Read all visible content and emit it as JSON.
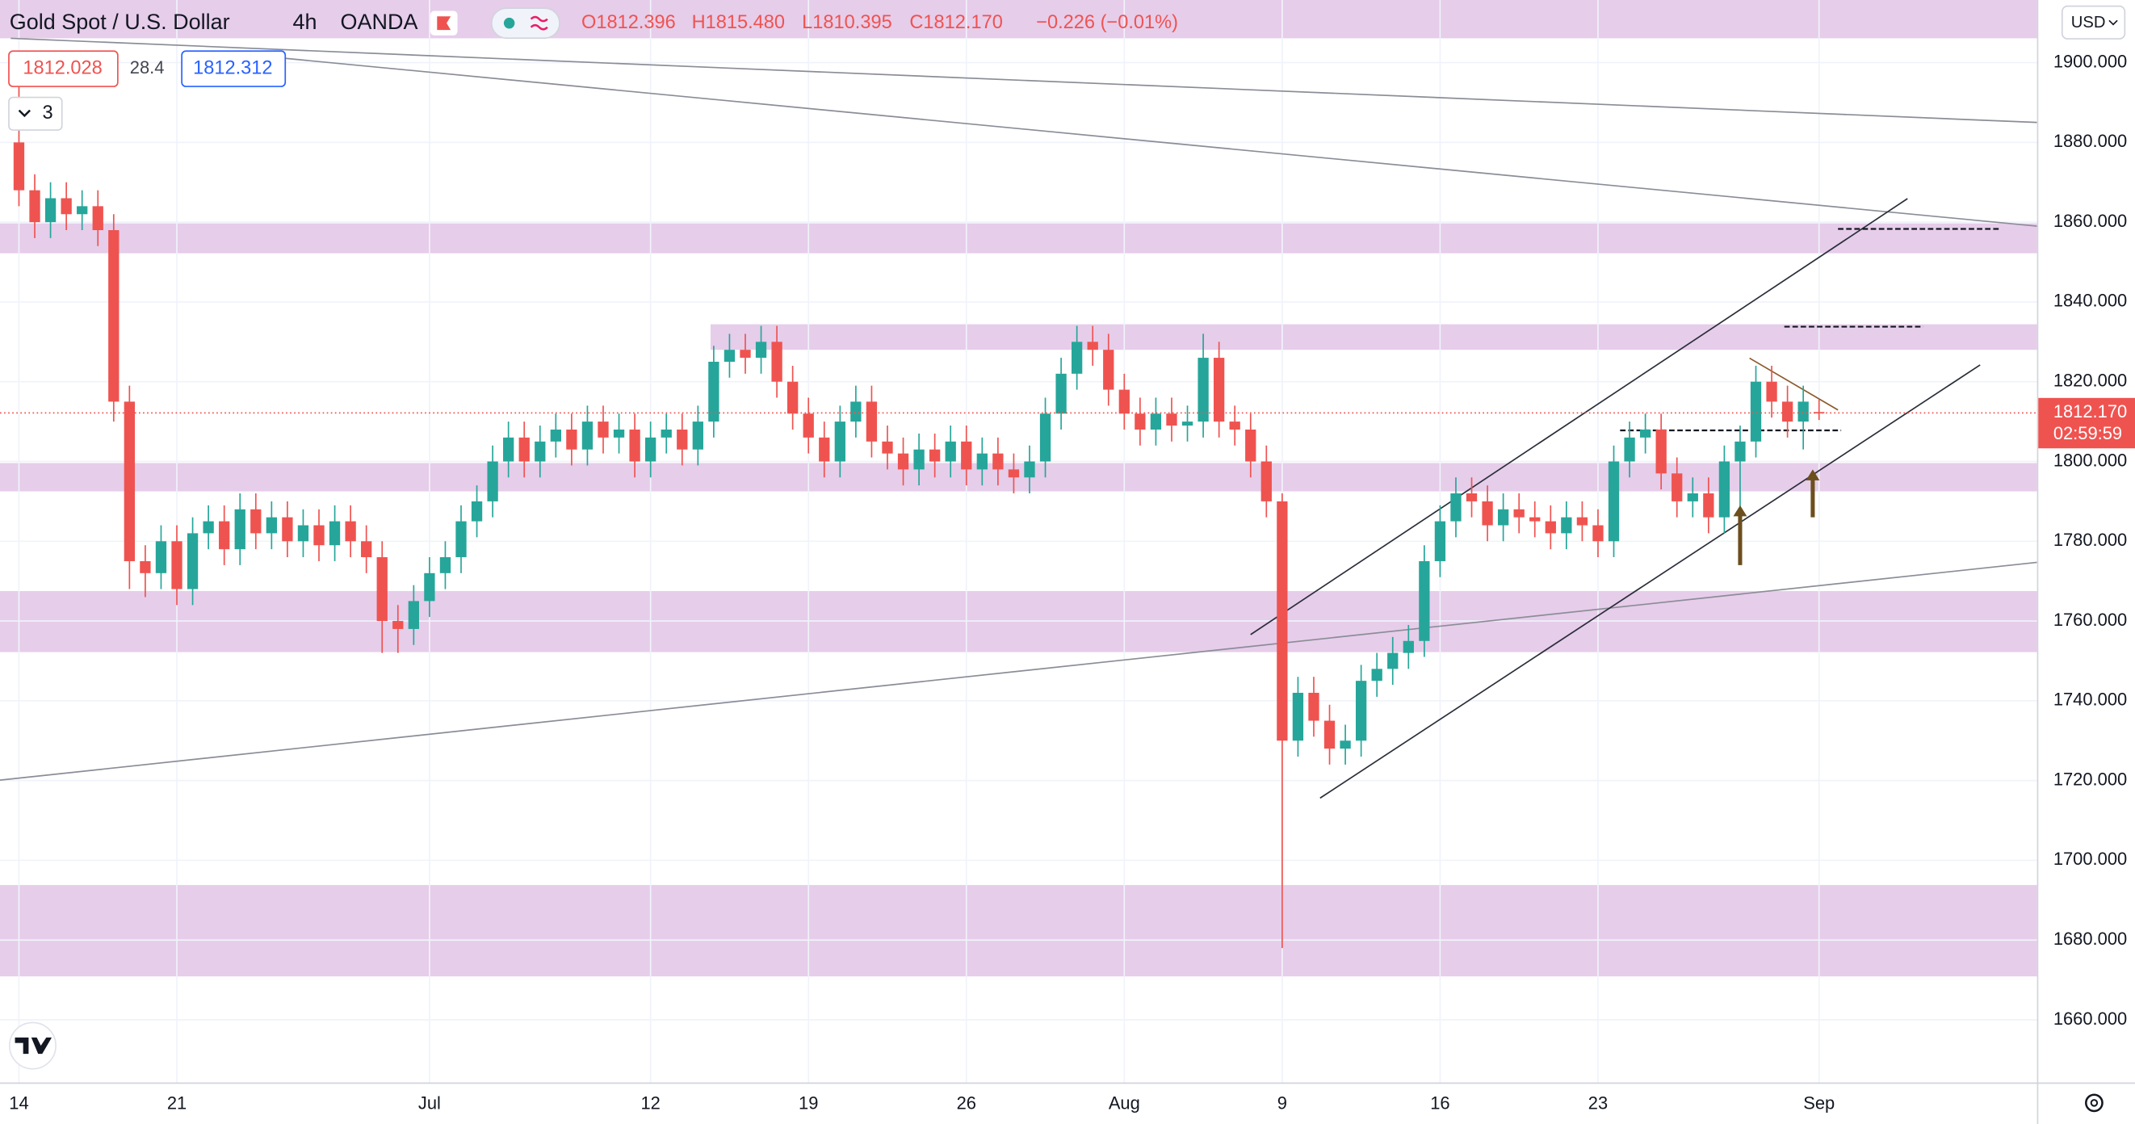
{
  "chart_data": {
    "type": "candlestick",
    "title": "Gold Spot / U.S. Dollar",
    "interval": "4h",
    "source": "OANDA",
    "header": {
      "o": "O1812.396",
      "h": "H1815.480",
      "l": "L1810.395",
      "c": "C1812.170",
      "change": "−0.226 (−0.01%)"
    },
    "bid": 1812.028,
    "spread": 28.4,
    "ask": 1812.312,
    "indicator_count": 3,
    "currency": "USD",
    "last_price_label": "1812.170",
    "countdown": "02:59:59",
    "up_color": "#26a69a",
    "down_color": "#ef5350",
    "grid": true,
    "xlim": [
      -0.6,
      63.9
    ],
    "ylim": [
      1644.3,
      1915.7
    ],
    "xticks": [
      {
        "value": 0,
        "label": "14"
      },
      {
        "value": 5,
        "label": "21"
      },
      {
        "value": 13,
        "label": "Jul"
      },
      {
        "value": 20,
        "label": "12"
      },
      {
        "value": 25,
        "label": "19"
      },
      {
        "value": 30,
        "label": "26"
      },
      {
        "value": 35,
        "label": "Aug"
      },
      {
        "value": 40,
        "label": "9"
      },
      {
        "value": 45,
        "label": "16"
      },
      {
        "value": 50,
        "label": "23"
      },
      {
        "value": 57,
        "label": "Sep"
      }
    ],
    "yticks": [
      {
        "value": 1660,
        "label": "1660.000"
      },
      {
        "value": 1680,
        "label": "1680.000"
      },
      {
        "value": 1700,
        "label": "1700.000"
      },
      {
        "value": 1720,
        "label": "1720.000"
      },
      {
        "value": 1740,
        "label": "1740.000"
      },
      {
        "value": 1760,
        "label": "1760.000"
      },
      {
        "value": 1780,
        "label": "1780.000"
      },
      {
        "value": 1800,
        "label": "1800.000"
      },
      {
        "value": 1820,
        "label": "1820.000"
      },
      {
        "value": 1840,
        "label": "1840.000"
      },
      {
        "value": 1860,
        "label": "1860.000"
      },
      {
        "value": 1880,
        "label": "1880.000"
      },
      {
        "value": 1900,
        "label": "1900.000"
      }
    ],
    "x": [
      0,
      0.5,
      1,
      1.5,
      2,
      2.5,
      3,
      3.5,
      4,
      4.5,
      5,
      5.5,
      6,
      6.5,
      7,
      7.5,
      8,
      8.5,
      9,
      9.5,
      10,
      10.5,
      11,
      11.5,
      12,
      12.5,
      13,
      13.5,
      14,
      14.5,
      15,
      15.5,
      16,
      16.5,
      17,
      17.5,
      18,
      18.5,
      19,
      19.5,
      20,
      20.5,
      21,
      21.5,
      22,
      22.5,
      23,
      23.5,
      24,
      24.5,
      25,
      25.5,
      26,
      26.5,
      27,
      27.5,
      28,
      28.5,
      29,
      29.5,
      30,
      30.5,
      31,
      31.5,
      32,
      32.5,
      33,
      33.5,
      34,
      34.5,
      35,
      35.5,
      36,
      36.5,
      37,
      37.5,
      38,
      38.5,
      39,
      39.5,
      40,
      40.5,
      41,
      41.5,
      42,
      42.5,
      43,
      43.5,
      44,
      44.5,
      45,
      45.5,
      46,
      46.5,
      47,
      47.5,
      48,
      48.5,
      49,
      49.5,
      50,
      50.5,
      51,
      51.5,
      52,
      52.5,
      53,
      53.5,
      54,
      54.5,
      55,
      55.5,
      56,
      56.5,
      57
    ],
    "open": [
      1880,
      1868,
      1860,
      1866,
      1862,
      1864,
      1858,
      1815,
      1775,
      1772,
      1780,
      1768,
      1782,
      1785,
      1778,
      1788,
      1782,
      1786,
      1780,
      1784,
      1779,
      1785,
      1780,
      1776,
      1760,
      1758,
      1765,
      1772,
      1776,
      1785,
      1790,
      1800,
      1806,
      1800,
      1805,
      1808,
      1803,
      1810,
      1806,
      1808,
      1800,
      1806,
      1808,
      1803,
      1810,
      1825,
      1828,
      1826,
      1830,
      1820,
      1812,
      1806,
      1800,
      1810,
      1815,
      1805,
      1802,
      1798,
      1803,
      1800,
      1805,
      1798,
      1802,
      1798,
      1796,
      1800,
      1812,
      1822,
      1830,
      1828,
      1818,
      1812,
      1808,
      1812,
      1809,
      1810,
      1826,
      1810,
      1808,
      1800,
      1790,
      1730,
      1742,
      1735,
      1728,
      1730,
      1745,
      1748,
      1752,
      1755,
      1775,
      1785,
      1792,
      1790,
      1784,
      1788,
      1786,
      1785,
      1782,
      1786,
      1784,
      1780,
      1800,
      1806,
      1808,
      1797,
      1790,
      1792,
      1786,
      1800,
      1805,
      1820,
      1815,
      1810,
      1812.396
    ],
    "high": [
      1895,
      1872,
      1870,
      1870,
      1868,
      1868,
      1862,
      1819,
      1779,
      1784,
      1784,
      1786,
      1789,
      1789,
      1792,
      1792,
      1790,
      1790,
      1788,
      1788,
      1789,
      1789,
      1784,
      1780,
      1764,
      1769,
      1776,
      1780,
      1789,
      1794,
      1804,
      1810,
      1810,
      1809,
      1812,
      1812,
      1814,
      1814,
      1812,
      1812,
      1810,
      1812,
      1812,
      1814,
      1829,
      1832,
      1832,
      1834,
      1834,
      1824,
      1816,
      1810,
      1814,
      1819,
      1819,
      1809,
      1806,
      1807,
      1807,
      1809,
      1809,
      1806,
      1806,
      1802,
      1804,
      1816,
      1826,
      1834,
      1834,
      1832,
      1822,
      1816,
      1816,
      1816,
      1814,
      1832,
      1830,
      1814,
      1812,
      1804,
      1792,
      1746,
      1746,
      1739,
      1734,
      1749,
      1752,
      1756,
      1759,
      1779,
      1789,
      1796,
      1796,
      1794,
      1792,
      1792,
      1790,
      1789,
      1790,
      1790,
      1788,
      1804,
      1810,
      1812,
      1812,
      1801,
      1796,
      1796,
      1804,
      1809,
      1824,
      1824,
      1819,
      1819,
      1815.48
    ],
    "low": [
      1864,
      1856,
      1856,
      1858,
      1858,
      1854,
      1810,
      1768,
      1766,
      1768,
      1764,
      1764,
      1778,
      1774,
      1774,
      1778,
      1778,
      1776,
      1776,
      1775,
      1775,
      1776,
      1772,
      1752,
      1752,
      1754,
      1761,
      1768,
      1772,
      1781,
      1786,
      1796,
      1796,
      1796,
      1801,
      1799,
      1799,
      1802,
      1802,
      1796,
      1796,
      1802,
      1799,
      1799,
      1806,
      1821,
      1822,
      1822,
      1816,
      1808,
      1802,
      1796,
      1796,
      1806,
      1801,
      1798,
      1794,
      1794,
      1796,
      1796,
      1794,
      1794,
      1794,
      1792,
      1792,
      1796,
      1808,
      1818,
      1824,
      1814,
      1808,
      1804,
      1804,
      1805,
      1805,
      1806,
      1806,
      1804,
      1796,
      1786,
      1678,
      1726,
      1731,
      1724,
      1724,
      1726,
      1741,
      1744,
      1748,
      1751,
      1771,
      1781,
      1786,
      1780,
      1780,
      1782,
      1781,
      1778,
      1778,
      1780,
      1776,
      1776,
      1796,
      1802,
      1793,
      1786,
      1786,
      1782,
      1782,
      1785,
      1801,
      1811,
      1806,
      1803,
      1810.395
    ],
    "close": [
      1868,
      1860,
      1866,
      1862,
      1864,
      1858,
      1815,
      1775,
      1772,
      1780,
      1768,
      1782,
      1785,
      1778,
      1788,
      1782,
      1786,
      1780,
      1784,
      1779,
      1785,
      1780,
      1776,
      1760,
      1758,
      1765,
      1772,
      1776,
      1785,
      1790,
      1800,
      1806,
      1800,
      1805,
      1808,
      1803,
      1810,
      1806,
      1808,
      1800,
      1806,
      1808,
      1803,
      1810,
      1825,
      1828,
      1826,
      1830,
      1820,
      1812,
      1806,
      1800,
      1810,
      1815,
      1805,
      1802,
      1798,
      1803,
      1800,
      1805,
      1798,
      1802,
      1798,
      1796,
      1800,
      1812,
      1822,
      1830,
      1828,
      1818,
      1812,
      1808,
      1812,
      1809,
      1810,
      1826,
      1810,
      1808,
      1800,
      1790,
      1730,
      1742,
      1735,
      1728,
      1730,
      1745,
      1748,
      1752,
      1755,
      1775,
      1785,
      1792,
      1790,
      1784,
      1788,
      1786,
      1785,
      1782,
      1786,
      1784,
      1780,
      1800,
      1806,
      1808,
      1797,
      1790,
      1792,
      1786,
      1800,
      1805,
      1820,
      1815,
      1810,
      1815,
      1812.17
    ],
    "zones": [
      {
        "from": 1906.1,
        "to": 1915.7,
        "start": -0.6
      },
      {
        "from": 1852.2,
        "to": 1859.7,
        "start": -0.6
      },
      {
        "from": 1828.0,
        "to": 1834.4,
        "start": 21.9
      },
      {
        "from": 1792.5,
        "to": 1799.6,
        "start": -0.6
      },
      {
        "from": 1752.2,
        "to": 1767.5,
        "start": -0.6
      },
      {
        "from": 1670.9,
        "to": 1693.8,
        "start": -0.6
      }
    ],
    "zone_color": "#e6cdea",
    "lines": [
      {
        "x": [
          -0.26,
          63.9
        ],
        "y": [
          1906.1,
          1885.0
        ],
        "color": "#8a8d96",
        "dash": false
      },
      {
        "x": [
          8.0,
          63.9
        ],
        "y": [
          1901.4,
          1859.0
        ],
        "color": "#8a8d96",
        "dash": false
      },
      {
        "x": [
          -0.6,
          63.9
        ],
        "y": [
          1720.1,
          1774.7
        ],
        "color": "#8a8d96",
        "dash": false
      },
      {
        "x": [
          39.0,
          59.8
        ],
        "y": [
          1756.6,
          1865.9
        ],
        "color": "#2a2e39",
        "dash": false
      },
      {
        "x": [
          41.2,
          62.1
        ],
        "y": [
          1715.6,
          1824.2
        ],
        "color": "#2a2e39",
        "dash": false
      },
      {
        "x": [
          54.8,
          57.6
        ],
        "y": [
          1825.9,
          1812.9
        ],
        "color": "#8b5a2b",
        "dash": false
      },
      {
        "x": [
          57.6,
          62.7
        ],
        "y": [
          1858.3,
          1858.3
        ],
        "color": "#131722",
        "dash": true
      },
      {
        "x": [
          55.9,
          60.3
        ],
        "y": [
          1833.8,
          1833.8
        ],
        "color": "#131722",
        "dash": true
      },
      {
        "x": [
          50.7,
          57.7
        ],
        "y": [
          1807.8,
          1807.8
        ],
        "color": "#131722",
        "dash": true
      }
    ],
    "arrows": [
      {
        "x": 54.5,
        "from": 1774,
        "to": 1789
      },
      {
        "x": 56.8,
        "from": 1786,
        "to": 1798
      }
    ],
    "arrow_color": "#6b4f1d"
  }
}
